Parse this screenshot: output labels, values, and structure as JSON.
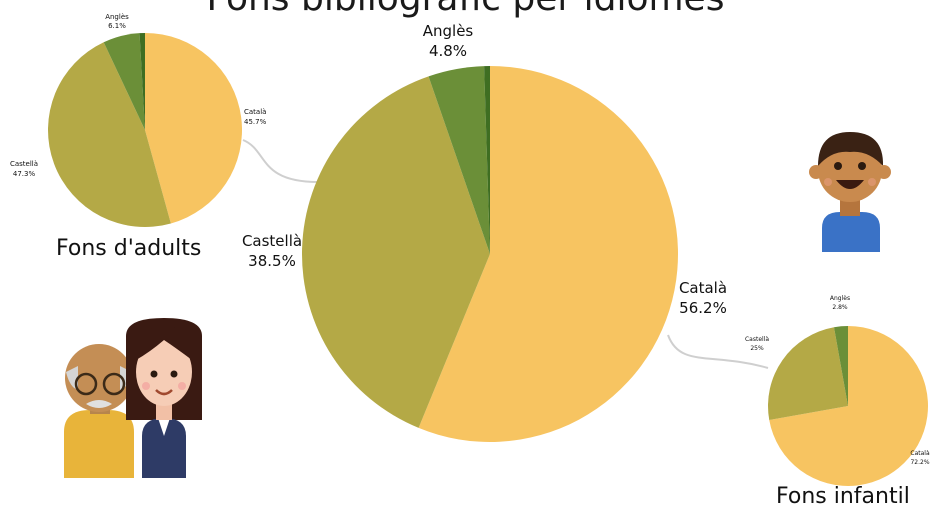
{
  "header": {
    "title": "Fons bibliogràfic per idiomes"
  },
  "colors": {
    "catala": "#F7C461",
    "castella": "#B4A946",
    "angles": "#6B8F38",
    "altres": "#3F6E22",
    "connector": "#cfcfcf"
  },
  "chart_data": [
    {
      "type": "pie",
      "title": "",
      "slices": [
        {
          "label": "Català",
          "value": 56.2,
          "text": "56.2%"
        },
        {
          "label": "Castellà",
          "value": 38.5,
          "text": "38.5%"
        },
        {
          "label": "Anglès",
          "value": 4.8,
          "text": "4.8%"
        },
        {
          "label": "",
          "value": 0.5,
          "text": ""
        }
      ]
    },
    {
      "type": "pie",
      "title": "Fons d'adults",
      "slices": [
        {
          "label": "Català",
          "value": 45.7,
          "text": "45.7%"
        },
        {
          "label": "Castellà",
          "value": 47.3,
          "text": "47.3%"
        },
        {
          "label": "Anglès",
          "value": 6.1,
          "text": "6.1%"
        },
        {
          "label": "",
          "value": 0.9,
          "text": ""
        }
      ]
    },
    {
      "type": "pie",
      "title": "Fons infantil",
      "slices": [
        {
          "label": "Català",
          "value": 72.2,
          "text": "72.2%"
        },
        {
          "label": "Castellà",
          "value": 25,
          "text": "25%"
        },
        {
          "label": "Anglès",
          "value": 2.8,
          "text": "2.8%"
        }
      ]
    }
  ]
}
